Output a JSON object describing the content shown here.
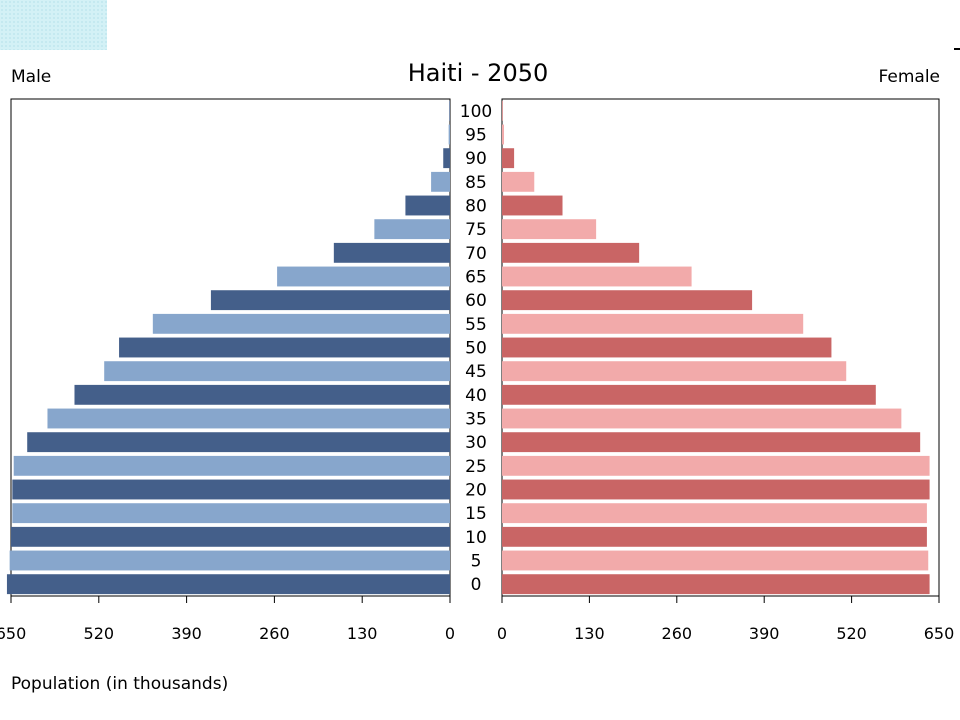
{
  "chart_data": {
    "type": "bar",
    "title": "Haiti - 2050",
    "left_label": "Male",
    "right_label": "Female",
    "xlabel": "Population (in thousands)",
    "categories": [
      "0",
      "5",
      "10",
      "15",
      "20",
      "25",
      "30",
      "35",
      "40",
      "45",
      "50",
      "55",
      "60",
      "65",
      "70",
      "75",
      "80",
      "85",
      "90",
      "95",
      "100"
    ],
    "series": [
      {
        "name": "Male",
        "values": [
          656,
          652,
          650,
          648,
          648,
          646,
          626,
          596,
          556,
          512,
          490,
          440,
          354,
          256,
          172,
          112,
          66,
          28,
          10,
          2,
          1
        ]
      },
      {
        "name": "Female",
        "values": [
          636,
          634,
          632,
          632,
          636,
          636,
          622,
          594,
          556,
          512,
          490,
          448,
          372,
          282,
          204,
          140,
          90,
          48,
          18,
          3,
          1
        ]
      }
    ],
    "xticks": [
      "650",
      "520",
      "390",
      "260",
      "130",
      "0"
    ],
    "xlim": [
      0,
      650
    ],
    "colors": {
      "male_dark": "#445f8a",
      "male_light": "#87a6cc",
      "female_dark": "#c96565",
      "female_light": "#f2aaaa"
    }
  }
}
